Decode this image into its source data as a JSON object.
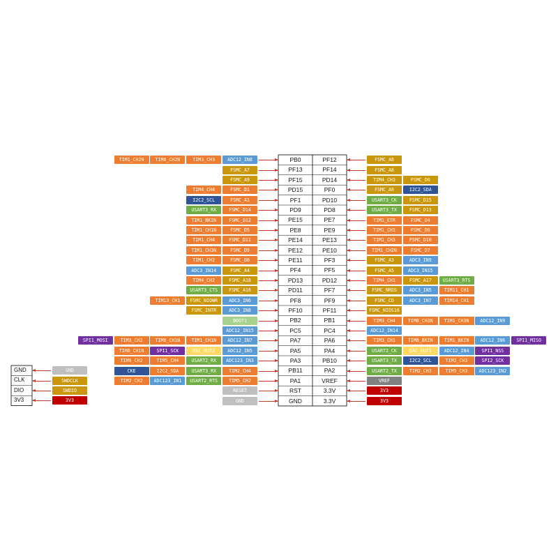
{
  "colors": {
    "orange": "#ED7D31",
    "gold": "#C9960C",
    "blue": "#5B9BD5",
    "green": "#70AD47",
    "navy": "#2F5597",
    "purple": "#7030A0",
    "gray": "#BFBFBF",
    "dkgray": "#808080",
    "red": "#C00000",
    "peach": "#F4B183",
    "pale_green": "#A9D18E",
    "pale_yellow": "#FFD966",
    "line": "#000000",
    "arrow": "#C0392B"
  },
  "rows": [
    {
      "left_pin": "PB0",
      "right_pin": "PF12",
      "left_tags": [
        [
          "TIM1_CH2N",
          "orange"
        ],
        [
          "TIM8_CH2N",
          "orange"
        ],
        [
          "TIM3_CH3",
          "orange"
        ],
        [
          "ADC12_IN8",
          "blue"
        ]
      ],
      "right_tags": [
        [
          "FSMC_A6",
          "gold"
        ]
      ]
    },
    {
      "left_pin": "PF13",
      "right_pin": "PF14",
      "left_tags": [
        [
          "FSMC_A7",
          "gold"
        ]
      ],
      "right_tags": [
        [
          "FSMC_A8",
          "gold"
        ]
      ]
    },
    {
      "left_pin": "PF15",
      "right_pin": "PD14",
      "left_tags": [
        [
          "FSMC_A9",
          "gold"
        ]
      ],
      "right_tags": [
        [
          "TIM4_CH3",
          "gold"
        ],
        [
          "FSMC_D0",
          "gold"
        ]
      ]
    },
    {
      "left_pin": "PD15",
      "right_pin": "PF0",
      "left_tags": [
        [
          "TIM4_CH4",
          "orange"
        ],
        [
          "FSMC_D1",
          "orange"
        ]
      ],
      "right_tags": [
        [
          "FSMC_A0",
          "gold"
        ],
        [
          "I2C2_SDA",
          "navy"
        ]
      ]
    },
    {
      "left_pin": "PF1",
      "right_pin": "PD10",
      "left_tags": [
        [
          "I2C2_SCL",
          "navy"
        ],
        [
          "FSMC_A1",
          "orange"
        ]
      ],
      "right_tags": [
        [
          "USART3_CK",
          "green"
        ],
        [
          "FSMC_D15",
          "gold"
        ]
      ]
    },
    {
      "left_pin": "PD9",
      "right_pin": "PD8",
      "left_tags": [
        [
          "USART3_RX",
          "green"
        ],
        [
          "FSMC_D14",
          "orange"
        ]
      ],
      "right_tags": [
        [
          "USART3_TX",
          "green"
        ],
        [
          "FSMC_D13",
          "gold"
        ]
      ]
    },
    {
      "left_pin": "PE15",
      "right_pin": "PE7",
      "left_tags": [
        [
          "TIM1_BKIN",
          "orange"
        ],
        [
          "FSMC_D12",
          "orange"
        ]
      ],
      "right_tags": [
        [
          "TIM1_ETR",
          "orange"
        ],
        [
          "FSMC_D4",
          "orange"
        ]
      ]
    },
    {
      "left_pin": "PE8",
      "right_pin": "PE9",
      "left_tags": [
        [
          "TIM1_CH1N",
          "orange"
        ],
        [
          "FSMC_D5",
          "orange"
        ]
      ],
      "right_tags": [
        [
          "TIM1_CH1",
          "orange"
        ],
        [
          "FSMC_D6",
          "orange"
        ]
      ]
    },
    {
      "left_pin": "PE14",
      "right_pin": "PE13",
      "left_tags": [
        [
          "TIM1_CH4",
          "orange"
        ],
        [
          "FSMC_D11",
          "orange"
        ]
      ],
      "right_tags": [
        [
          "TIM1_CH3",
          "orange"
        ],
        [
          "FSMC_D10",
          "orange"
        ]
      ]
    },
    {
      "left_pin": "PE12",
      "right_pin": "PE10",
      "left_tags": [
        [
          "TIM1_CH3N",
          "orange"
        ],
        [
          "FSMC_D9",
          "orange"
        ]
      ],
      "right_tags": [
        [
          "TIM1_CH2N",
          "orange"
        ],
        [
          "FSMC_D7",
          "orange"
        ]
      ]
    },
    {
      "left_pin": "PE11",
      "right_pin": "PF3",
      "left_tags": [
        [
          "TIM1_CH2",
          "orange"
        ],
        [
          "FSMC_D8",
          "orange"
        ]
      ],
      "right_tags": [
        [
          "FSMC_A3",
          "gold"
        ],
        [
          "ADC3_IN9",
          "blue"
        ]
      ]
    },
    {
      "left_pin": "PF4",
      "right_pin": "PF5",
      "left_tags": [
        [
          "ADC3_IN14",
          "blue"
        ],
        [
          "FSMC_A4",
          "gold"
        ]
      ],
      "right_tags": [
        [
          "FSMC_A5",
          "gold"
        ],
        [
          "ADC3_IN15",
          "blue"
        ]
      ]
    },
    {
      "left_pin": "PD13",
      "right_pin": "PD12",
      "left_tags": [
        [
          "TIM4_CH2",
          "orange"
        ],
        [
          "FSMC_A18",
          "gold"
        ]
      ],
      "right_tags": [
        [
          "TIM4_CH1",
          "orange"
        ],
        [
          "FSMC_A17",
          "gold"
        ],
        [
          "USART3_RTS",
          "green"
        ]
      ]
    },
    {
      "left_pin": "PD11",
      "right_pin": "PF7",
      "left_tags": [
        [
          "USART3_CTS",
          "green"
        ],
        [
          "FSMC_A16",
          "gold"
        ]
      ],
      "right_tags": [
        [
          "FSMC_NREG",
          "gold"
        ],
        [
          "ADC3_IN5",
          "blue"
        ],
        [
          "TIM11_CH1",
          "orange"
        ]
      ]
    },
    {
      "left_pin": "PF8",
      "right_pin": "PF9",
      "left_tags": [
        [
          "TIM13_CH1",
          "orange"
        ],
        [
          "FSMC_NIOWR",
          "gold"
        ],
        [
          "ADC3_IN6",
          "blue"
        ]
      ],
      "right_tags": [
        [
          "FSMC_CD",
          "gold"
        ],
        [
          "ADC3_IN7",
          "blue"
        ],
        [
          "TIM14_CH1",
          "orange"
        ]
      ]
    },
    {
      "left_pin": "PF10",
      "right_pin": "PF11",
      "left_tags": [
        [
          "FSMC_INTR",
          "gold"
        ],
        [
          "ADC3_IN8",
          "blue"
        ]
      ],
      "right_tags": [
        [
          "FSMC_NIOS16",
          "gold"
        ]
      ]
    },
    {
      "left_pin": "PB2",
      "right_pin": "PB1",
      "left_tags": [
        [
          "BOOT1",
          "pale_green"
        ]
      ],
      "right_tags": [
        [
          "TIM3_CH4",
          "orange"
        ],
        [
          "TIM8_CH3N",
          "orange"
        ],
        [
          "TIM1_CH3N",
          "orange"
        ],
        [
          "ADC12_IN9",
          "blue"
        ]
      ]
    },
    {
      "left_pin": "PC5",
      "right_pin": "PC4",
      "left_tags": [
        [
          "ADC12_IN15",
          "blue"
        ]
      ],
      "right_tags": [
        [
          "ADC12_IN14",
          "blue"
        ]
      ]
    },
    {
      "left_pin": "PA7",
      "right_pin": "PA6",
      "left_tags": [
        [
          "SPI1_MOSI",
          "purple"
        ],
        [
          "TIM3_CH2",
          "orange"
        ],
        [
          "TIM8_CH1N",
          "orange"
        ],
        [
          "TIM1_CH1N",
          "orange"
        ],
        [
          "ADC12_IN7",
          "blue"
        ]
      ],
      "right_tags": [
        [
          "TIM3_CH1",
          "orange"
        ],
        [
          "TIM8_BKIN",
          "orange"
        ],
        [
          "TIM1_BKIN",
          "orange"
        ],
        [
          "ADC12_IN6",
          "blue"
        ],
        [
          "SPI1_MISO",
          "purple"
        ]
      ]
    },
    {
      "left_pin": "PA5",
      "right_pin": "PA4",
      "left_tags": [
        [
          "TIM8_CH1N",
          "orange"
        ],
        [
          "SPI1_SCK",
          "purple"
        ],
        [
          "DAC_OUT2",
          "pale_yellow"
        ],
        [
          "ADC12_IN5",
          "blue"
        ]
      ],
      "right_tags": [
        [
          "USART2_CK",
          "green"
        ],
        [
          "DAC_OUT1",
          "pale_yellow"
        ],
        [
          "ADC12_IN4",
          "blue"
        ],
        [
          "SPI1_NSS",
          "purple"
        ]
      ]
    },
    {
      "left_pin": "PA3",
      "right_pin": "PB10",
      "left_tags": [
        [
          "TIM9_CH2",
          "orange"
        ],
        [
          "TIM5_CH4",
          "orange"
        ],
        [
          "USART2_RX",
          "green"
        ],
        [
          "ADC123_IN3",
          "blue"
        ]
      ],
      "right_tags": [
        [
          "USART3_TX",
          "green"
        ],
        [
          "I2C2_SCL",
          "navy"
        ],
        [
          "TIM2_CH3",
          "orange"
        ],
        [
          "SPI2_SCK",
          "purple"
        ]
      ]
    },
    {
      "left_pin": "PB11",
      "right_pin": "PA2",
      "left_tags": [
        [
          "CKE",
          "navy"
        ],
        [
          "I2C2_SDA",
          "orange"
        ],
        [
          "USART3_RX",
          "green"
        ],
        [
          "TIM2_CH4",
          "orange"
        ]
      ],
      "right_tags": [
        [
          "USART2_TX",
          "green"
        ],
        [
          "TIM2_CH3",
          "orange"
        ],
        [
          "TIM5_CH3",
          "orange"
        ],
        [
          "ADC123_IN2",
          "blue"
        ]
      ]
    },
    {
      "left_pin": "PA1",
      "right_pin": "VREF",
      "left_tags": [
        [
          "TIM2_CH2",
          "orange"
        ],
        [
          "ADC123_IN1",
          "blue"
        ],
        [
          "USART2_RTS",
          "green"
        ],
        [
          "TIM5_CH2",
          "orange"
        ]
      ],
      "right_tags": [
        [
          "VREF",
          "dkgray"
        ]
      ]
    },
    {
      "left_pin": "RST",
      "right_pin": "3.3V",
      "left_tags": [
        [
          "RESET",
          "gray"
        ]
      ],
      "right_tags": [
        [
          "3V3",
          "red"
        ]
      ]
    },
    {
      "left_pin": "GND",
      "right_pin": "3.3V",
      "left_tags": [
        [
          "GND",
          "gray"
        ]
      ],
      "right_tags": [
        [
          "3V3",
          "red"
        ]
      ]
    }
  ],
  "swd": [
    {
      "label": "GND",
      "tag": "GND",
      "color": "gray"
    },
    {
      "label": "CLK",
      "tag": "SWDCLK",
      "color": "gold"
    },
    {
      "label": "DIO",
      "tag": "SWDIO",
      "color": "gold"
    },
    {
      "label": "3V3",
      "tag": "3V3",
      "color": "red"
    }
  ]
}
